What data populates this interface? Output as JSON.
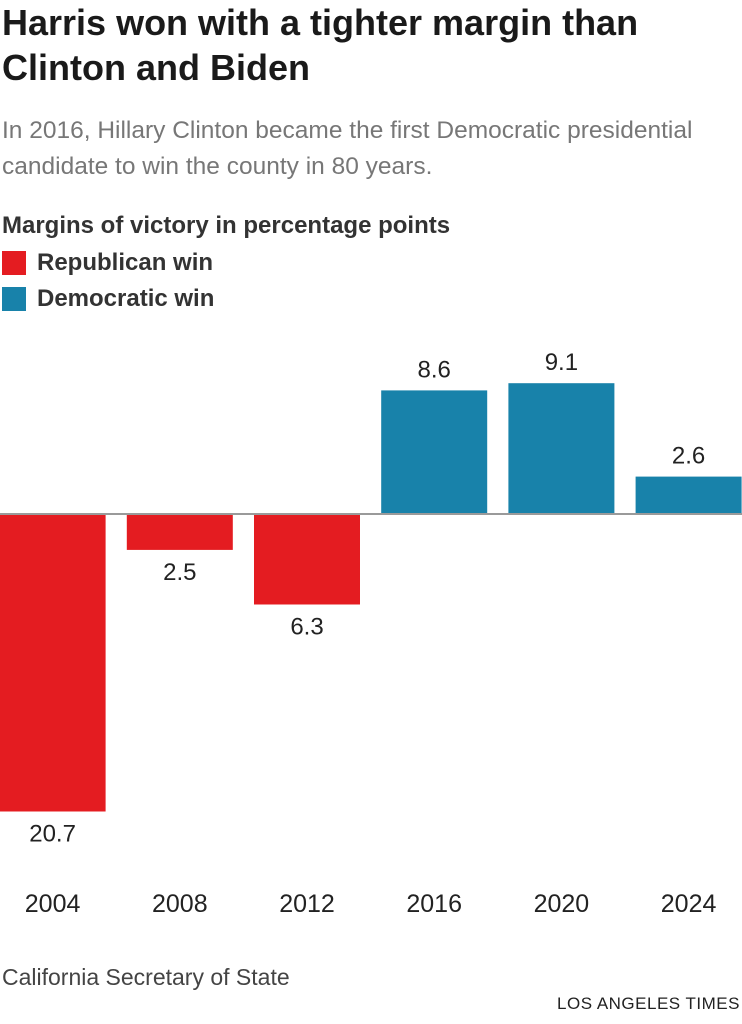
{
  "title": "Harris won with a tighter margin than Clinton and Biden",
  "subtitle": "In 2016, Hillary Clinton became the first Democratic presidential candidate to win the county in 80 years.",
  "measure_label": "Margins of victory in percentage points",
  "legend": [
    {
      "label": "Republican win",
      "color": "#e41c21"
    },
    {
      "label": "Democratic win",
      "color": "#1882aa"
    }
  ],
  "source": "California Secretary of State",
  "credit": "LOS ANGELES TIMES",
  "colors": {
    "republican": "#e41c21",
    "democratic": "#1882aa",
    "baseline": "#9a9a9a",
    "label_text": "#222222"
  },
  "chart_data": {
    "type": "bar",
    "title": "Harris won with a tighter margin than Clinton and Biden",
    "ylabel": "Margins of victory in percentage points",
    "categories": [
      "2004",
      "2008",
      "2012",
      "2016",
      "2020",
      "2024"
    ],
    "values": [
      -20.7,
      -2.5,
      -6.3,
      8.6,
      9.1,
      2.6
    ],
    "value_labels": [
      "20.7",
      "2.5",
      "6.3",
      "8.6",
      "9.1",
      "2.6"
    ],
    "winner": [
      "Republican",
      "Republican",
      "Republican",
      "Democratic",
      "Democratic",
      "Democratic"
    ],
    "ylim": [
      -20.7,
      9.1
    ],
    "grid": false,
    "legend_position": "top-left"
  }
}
